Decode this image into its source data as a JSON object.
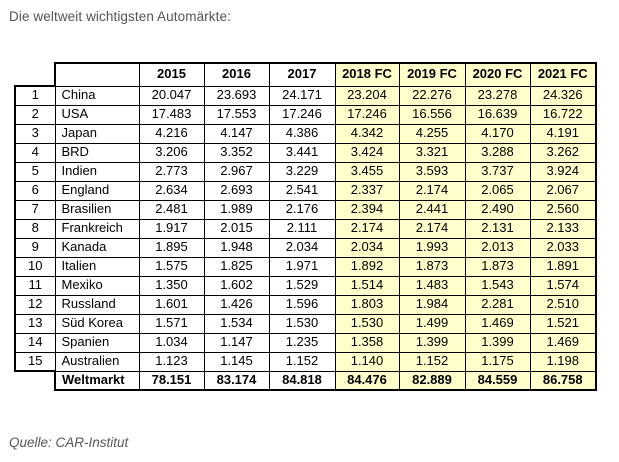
{
  "title": "Die weltweit wichtigsten Automärkte:",
  "source": "Quelle: CAR-Institut",
  "colors": {
    "forecast_background": "#ffffcc",
    "table_border": "#000000",
    "title_text": "#545454"
  },
  "table": {
    "headers": [
      "2015",
      "2016",
      "2017",
      "2018 FC",
      "2019 FC",
      "2020 FC",
      "2021 FC"
    ],
    "forecast_start_index": 3,
    "rows": [
      {
        "rank": "1",
        "country": "China",
        "values": [
          "20.047",
          "23.693",
          "24.171",
          "23.204",
          "22.276",
          "23.278",
          "24.326"
        ]
      },
      {
        "rank": "2",
        "country": "USA",
        "values": [
          "17.483",
          "17.553",
          "17.246",
          "17.246",
          "16.556",
          "16.639",
          "16.722"
        ]
      },
      {
        "rank": "3",
        "country": "Japan",
        "values": [
          "4.216",
          "4.147",
          "4.386",
          "4.342",
          "4.255",
          "4.170",
          "4.191"
        ]
      },
      {
        "rank": "4",
        "country": "BRD",
        "values": [
          "3.206",
          "3.352",
          "3.441",
          "3.424",
          "3.321",
          "3.288",
          "3.262"
        ]
      },
      {
        "rank": "5",
        "country": "Indien",
        "values": [
          "2.773",
          "2.967",
          "3.229",
          "3.455",
          "3.593",
          "3.737",
          "3.924"
        ]
      },
      {
        "rank": "6",
        "country": "England",
        "values": [
          "2.634",
          "2.693",
          "2.541",
          "2.337",
          "2.174",
          "2.065",
          "2.067"
        ]
      },
      {
        "rank": "7",
        "country": "Brasilien",
        "values": [
          "2.481",
          "1.989",
          "2.176",
          "2.394",
          "2.441",
          "2.490",
          "2.560"
        ]
      },
      {
        "rank": "8",
        "country": "Frankreich",
        "values": [
          "1.917",
          "2.015",
          "2.111",
          "2.174",
          "2.174",
          "2.131",
          "2.133"
        ]
      },
      {
        "rank": "9",
        "country": "Kanada",
        "values": [
          "1.895",
          "1.948",
          "2.034",
          "2.034",
          "1.993",
          "2.013",
          "2.033"
        ]
      },
      {
        "rank": "10",
        "country": "Italien",
        "values": [
          "1.575",
          "1.825",
          "1.971",
          "1.892",
          "1.873",
          "1.873",
          "1.891"
        ]
      },
      {
        "rank": "11",
        "country": "Mexiko",
        "values": [
          "1.350",
          "1.602",
          "1.529",
          "1.514",
          "1.483",
          "1.543",
          "1.574"
        ]
      },
      {
        "rank": "12",
        "country": "Russland",
        "values": [
          "1.601",
          "1.426",
          "1.596",
          "1.803",
          "1.984",
          "2.281",
          "2.510"
        ]
      },
      {
        "rank": "13",
        "country": "Süd Korea",
        "values": [
          "1.571",
          "1.534",
          "1.530",
          "1.530",
          "1.499",
          "1.469",
          "1.521"
        ]
      },
      {
        "rank": "14",
        "country": "Spanien",
        "values": [
          "1.034",
          "1.147",
          "1.235",
          "1.358",
          "1.399",
          "1.399",
          "1.469"
        ]
      },
      {
        "rank": "15",
        "country": "Australien",
        "values": [
          "1.123",
          "1.145",
          "1.152",
          "1.140",
          "1.152",
          "1.175",
          "1.198"
        ]
      }
    ],
    "total": {
      "label": "Weltmarkt",
      "values": [
        "78.151",
        "83.174",
        "84.818",
        "84.476",
        "82.889",
        "84.559",
        "86.758"
      ]
    }
  }
}
